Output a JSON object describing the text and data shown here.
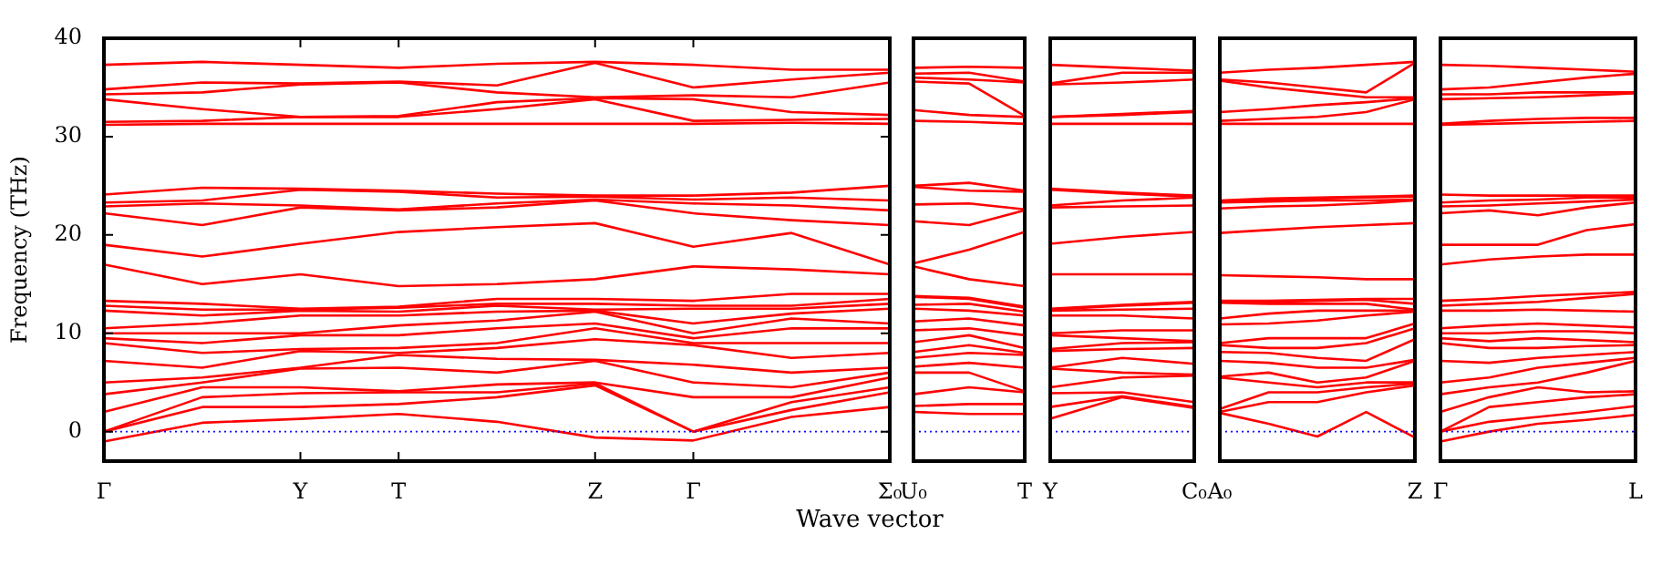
{
  "chart_data": [
    {
      "type": "line",
      "ylabel": "Frequency (THz)",
      "xlabel": "Wave vector",
      "color": "#ff0000",
      "categories": [
        "Γ",
        null,
        "Y",
        "T",
        null,
        "Z",
        "Γ",
        null,
        "Σ₀"
      ],
      "ylim": [
        -3,
        40
      ],
      "yticks": [
        0,
        10,
        20,
        30,
        40
      ],
      "ref_lines": [
        {
          "axis": "y",
          "value": 0,
          "color": "#0000ff",
          "line_style": "dotted"
        }
      ],
      "series": [
        {
          "values": [
            -1.0,
            0.9,
            1.3,
            1.8,
            1.0,
            -0.6,
            -0.9,
            1.5,
            2.5
          ]
        },
        {
          "values": [
            0,
            2.5,
            2.5,
            2.8,
            3.5,
            4.7,
            0,
            2.2,
            4.0
          ]
        },
        {
          "values": [
            0,
            3.5,
            3.9,
            4.0,
            4.0,
            4.9,
            0,
            3.0,
            4.5
          ]
        },
        {
          "values": [
            2,
            4.5,
            4.5,
            4.1,
            4.8,
            5.0,
            3.5,
            3.5,
            5.5
          ]
        },
        {
          "values": [
            3.8,
            5,
            6.4,
            6.5,
            6.0,
            7.2,
            5,
            4.5,
            6.0
          ]
        },
        {
          "values": [
            5,
            5.5,
            6.5,
            7.8,
            7.4,
            7.3,
            6.8,
            6.0,
            6.5
          ]
        },
        {
          "values": [
            7.2,
            6.5,
            8.2,
            8.0,
            8.5,
            9.4,
            8.8,
            7.5,
            8.0
          ]
        },
        {
          "values": [
            9,
            8,
            8.4,
            8.5,
            9.0,
            10.5,
            9.0,
            9.0,
            9.0
          ]
        },
        {
          "values": [
            9.5,
            9,
            9.8,
            9.8,
            10.5,
            11.0,
            9.5,
            10.5,
            10.5
          ]
        },
        {
          "values": [
            10,
            10,
            10,
            10.8,
            11.3,
            12.2,
            10.0,
            11.5,
            11.0
          ]
        },
        {
          "values": [
            10.5,
            11,
            11.8,
            11.8,
            12.2,
            12.3,
            11.0,
            12.0,
            12.5
          ]
        },
        {
          "values": [
            12.3,
            11.8,
            12.3,
            12.2,
            12.8,
            12.4,
            12.5,
            12.5,
            13.0
          ]
        },
        {
          "values": [
            12.8,
            12.4,
            12.4,
            12.6,
            13.0,
            13.0,
            12.8,
            12.8,
            13.5
          ]
        },
        {
          "values": [
            13.3,
            13,
            12.5,
            12.7,
            13.5,
            13.5,
            13.3,
            14.0,
            14.0
          ]
        },
        {
          "values": [
            17,
            15,
            16,
            14.8,
            15.0,
            15.5,
            16.8,
            16.5,
            16.0
          ]
        },
        {
          "values": [
            19,
            17.8,
            19.1,
            20.3,
            20.8,
            21.2,
            18.8,
            20.2,
            17.0
          ]
        },
        {
          "values": [
            22.2,
            21,
            22.8,
            22.5,
            22.8,
            23.5,
            22.2,
            21.5,
            21.0
          ]
        },
        {
          "values": [
            22.9,
            23.2,
            23.0,
            22.6,
            23.2,
            23.6,
            23.2,
            23.0,
            22.5
          ]
        },
        {
          "values": [
            23.3,
            23.5,
            24.6,
            24.4,
            23.8,
            23.9,
            23.6,
            23.8,
            23.5
          ]
        },
        {
          "values": [
            24.1,
            24.8,
            24.7,
            24.5,
            24.2,
            24.0,
            24.0,
            24.3,
            25.0
          ]
        },
        {
          "values": [
            31.2,
            31.3,
            31.3,
            31.3,
            31.3,
            31.3,
            31.3,
            31.4,
            31.3
          ]
        },
        {
          "values": [
            31.5,
            31.6,
            32.0,
            32.0,
            32.8,
            33.8,
            31.6,
            31.7,
            31.8
          ]
        },
        {
          "values": [
            33.8,
            32.8,
            32.0,
            32.1,
            33.5,
            33.9,
            33.8,
            32.5,
            32.2
          ]
        },
        {
          "values": [
            34.3,
            34.5,
            35.3,
            35.5,
            34.5,
            34.0,
            34.2,
            34.0,
            35.5
          ]
        },
        {
          "values": [
            34.8,
            35.5,
            35.4,
            35.6,
            35.2,
            37.5,
            35.0,
            35.8,
            36.5
          ]
        },
        {
          "values": [
            37.3,
            37.6,
            37.3,
            37.0,
            37.4,
            37.6,
            37.3,
            36.8,
            36.8
          ]
        }
      ]
    },
    {
      "type": "line",
      "color": "#ff0000",
      "tick_labels": "x",
      "categories": [
        "U₀",
        null,
        "T"
      ],
      "ylim": [
        -3,
        40
      ],
      "yticks": [
        0,
        10,
        20,
        30,
        40
      ],
      "ref_lines": [
        {
          "axis": "y",
          "value": 0,
          "color": "#0000ff",
          "line_style": "dotted"
        }
      ],
      "series": [
        {
          "values": [
            2.0,
            1.8,
            1.8
          ]
        },
        {
          "values": [
            2.6,
            2.8,
            2.8
          ]
        },
        {
          "values": [
            3.8,
            4.5,
            4.0
          ]
        },
        {
          "values": [
            6.0,
            6.0,
            4.1
          ]
        },
        {
          "values": [
            6.6,
            7.0,
            6.5
          ]
        },
        {
          "values": [
            7.5,
            8.0,
            7.8
          ]
        },
        {
          "values": [
            8.1,
            8.8,
            8.0
          ]
        },
        {
          "values": [
            9.1,
            9.8,
            8.5
          ]
        },
        {
          "values": [
            10.3,
            10.5,
            9.8
          ]
        },
        {
          "values": [
            11.2,
            11.5,
            10.8
          ]
        },
        {
          "values": [
            12.5,
            12.3,
            11.8
          ]
        },
        {
          "values": [
            12.9,
            13.0,
            12.2
          ]
        },
        {
          "values": [
            13.7,
            13.5,
            12.6
          ]
        },
        {
          "values": [
            13.8,
            13.6,
            12.7
          ]
        },
        {
          "values": [
            16.8,
            15.5,
            14.8
          ]
        },
        {
          "values": [
            17.1,
            18.5,
            20.3
          ]
        },
        {
          "values": [
            21.4,
            21.0,
            22.5
          ]
        },
        {
          "values": [
            23.1,
            23.2,
            22.6
          ]
        },
        {
          "values": [
            24.9,
            24.5,
            24.4
          ]
        },
        {
          "values": [
            25.0,
            25.3,
            24.5
          ]
        },
        {
          "values": [
            31.6,
            31.5,
            31.3
          ]
        },
        {
          "values": [
            32.7,
            32.2,
            32.0
          ]
        },
        {
          "values": [
            35.6,
            35.4,
            32.1
          ]
        },
        {
          "values": [
            36.0,
            35.8,
            35.5
          ]
        },
        {
          "values": [
            36.4,
            36.5,
            35.6
          ]
        },
        {
          "values": [
            37.0,
            37.1,
            37.0
          ]
        }
      ]
    },
    {
      "type": "line",
      "color": "#ff0000",
      "tick_labels": "x",
      "categories": [
        "Y",
        null,
        "C₀"
      ],
      "ylim": [
        -3,
        40
      ],
      "yticks": [
        0,
        10,
        20,
        30,
        40
      ],
      "ref_lines": [
        {
          "axis": "y",
          "value": 0,
          "color": "#0000ff",
          "line_style": "dotted"
        }
      ],
      "series": [
        {
          "values": [
            1.3,
            3.5,
            2.4
          ]
        },
        {
          "values": [
            2.5,
            3.6,
            2.5
          ]
        },
        {
          "values": [
            3.9,
            4.0,
            3.0
          ]
        },
        {
          "values": [
            4.5,
            5.5,
            5.7
          ]
        },
        {
          "values": [
            6.4,
            6.0,
            5.8
          ]
        },
        {
          "values": [
            6.5,
            7.5,
            6.9
          ]
        },
        {
          "values": [
            8.2,
            8.4,
            8.5
          ]
        },
        {
          "values": [
            8.4,
            9.0,
            9.1
          ]
        },
        {
          "values": [
            9.8,
            9.5,
            9.2
          ]
        },
        {
          "values": [
            10,
            10.3,
            10.3
          ]
        },
        {
          "values": [
            11.8,
            11.8,
            11.5
          ]
        },
        {
          "values": [
            12.3,
            12.4,
            12.5
          ]
        },
        {
          "values": [
            12.4,
            12.8,
            13.1
          ]
        },
        {
          "values": [
            12.5,
            12.9,
            13.2
          ]
        },
        {
          "values": [
            16,
            16.0,
            16.0
          ]
        },
        {
          "values": [
            19.1,
            19.8,
            20.3
          ]
        },
        {
          "values": [
            22.8,
            22.9,
            23.0
          ]
        },
        {
          "values": [
            23.0,
            23.5,
            23.8
          ]
        },
        {
          "values": [
            24.6,
            24.2,
            23.9
          ]
        },
        {
          "values": [
            24.7,
            24.3,
            24.0
          ]
        },
        {
          "values": [
            31.3,
            31.3,
            31.3
          ]
        },
        {
          "values": [
            32.0,
            32.2,
            32.5
          ]
        },
        {
          "values": [
            32.0,
            32.3,
            32.6
          ]
        },
        {
          "values": [
            35.3,
            35.5,
            35.8
          ]
        },
        {
          "values": [
            35.4,
            36.5,
            36.5
          ]
        },
        {
          "values": [
            37.3,
            37.0,
            36.7
          ]
        }
      ]
    },
    {
      "type": "line",
      "color": "#ff0000",
      "tick_labels": "x",
      "categories": [
        "A₀",
        null,
        null,
        null,
        "Z"
      ],
      "ylim": [
        -3,
        40
      ],
      "yticks": [
        0,
        10,
        20,
        30,
        40
      ],
      "ref_lines": [
        {
          "axis": "y",
          "value": 0,
          "color": "#0000ff",
          "line_style": "dotted"
        }
      ],
      "series": [
        {
          "values": [
            1.9,
            0.8,
            -0.5,
            2.0,
            -0.6
          ]
        },
        {
          "values": [
            2.0,
            3.0,
            3.0,
            4.0,
            4.7
          ]
        },
        {
          "values": [
            2.3,
            4.0,
            4.0,
            4.5,
            4.9
          ]
        },
        {
          "values": [
            5.5,
            5.0,
            4.5,
            5.0,
            5.0
          ]
        },
        {
          "values": [
            5.6,
            6.0,
            5.0,
            5.5,
            7.2
          ]
        },
        {
          "values": [
            7.2,
            7.0,
            6.5,
            6.5,
            7.3
          ]
        },
        {
          "values": [
            8.1,
            8.0,
            7.5,
            7.2,
            9.4
          ]
        },
        {
          "values": [
            8.8,
            8.5,
            8.5,
            9.0,
            10.5
          ]
        },
        {
          "values": [
            9.0,
            9.5,
            9.5,
            9.5,
            11.0
          ]
        },
        {
          "values": [
            10.9,
            11.0,
            11.3,
            11.8,
            12.2
          ]
        },
        {
          "values": [
            11.5,
            12.0,
            12.3,
            12.3,
            12.3
          ]
        },
        {
          "values": [
            13.1,
            13.0,
            13.0,
            13.0,
            12.4
          ]
        },
        {
          "values": [
            13.2,
            13.2,
            13.3,
            13.4,
            13.0
          ]
        },
        {
          "values": [
            13.3,
            13.3,
            13.4,
            13.5,
            13.5
          ]
        },
        {
          "values": [
            15.9,
            15.8,
            15.7,
            15.5,
            15.5
          ]
        },
        {
          "values": [
            20.2,
            20.5,
            20.8,
            21.0,
            21.2
          ]
        },
        {
          "values": [
            22.7,
            22.9,
            23.0,
            23.2,
            23.5
          ]
        },
        {
          "values": [
            23.3,
            23.4,
            23.5,
            23.5,
            23.6
          ]
        },
        {
          "values": [
            23.4,
            23.6,
            23.7,
            23.8,
            23.9
          ]
        },
        {
          "values": [
            23.5,
            23.7,
            23.8,
            23.9,
            24.0
          ]
        },
        {
          "values": [
            31.3,
            31.3,
            31.3,
            31.3,
            31.3
          ]
        },
        {
          "values": [
            31.6,
            31.8,
            32.0,
            32.5,
            33.8
          ]
        },
        {
          "values": [
            32.5,
            32.8,
            33.2,
            33.5,
            33.9
          ]
        },
        {
          "values": [
            35.7,
            35.0,
            34.5,
            34.0,
            34.0
          ]
        },
        {
          "values": [
            35.8,
            35.5,
            35.0,
            34.5,
            37.5
          ]
        },
        {
          "values": [
            36.5,
            36.8,
            37.0,
            37.3,
            37.6
          ]
        }
      ]
    },
    {
      "type": "line",
      "color": "#ff0000",
      "tick_labels": "x",
      "categories": [
        "Γ",
        null,
        null,
        null,
        "L"
      ],
      "ylim": [
        -3,
        40
      ],
      "yticks": [
        0,
        10,
        20,
        30,
        40
      ],
      "ref_lines": [
        {
          "axis": "y",
          "value": 0,
          "color": "#0000ff",
          "line_style": "dotted"
        }
      ],
      "series": [
        {
          "values": [
            -1.0,
            0.0,
            0.8,
            1.2,
            1.7
          ]
        },
        {
          "values": [
            0,
            1.0,
            1.5,
            2.0,
            2.6
          ]
        },
        {
          "values": [
            0,
            2.5,
            3.0,
            3.5,
            3.8
          ]
        },
        {
          "values": [
            2,
            3.5,
            4.5,
            4.0,
            4.1
          ]
        },
        {
          "values": [
            3.8,
            4.5,
            5.0,
            6.0,
            7.2
          ]
        },
        {
          "values": [
            5,
            5.5,
            6.5,
            7.0,
            7.5
          ]
        },
        {
          "values": [
            7.2,
            7.0,
            7.5,
            7.8,
            8.1
          ]
        },
        {
          "values": [
            9,
            8.5,
            8.5,
            8.7,
            8.8
          ]
        },
        {
          "values": [
            9.5,
            9.2,
            9.5,
            9.3,
            9.1
          ]
        },
        {
          "values": [
            10,
            10.0,
            10.2,
            10.2,
            10.0
          ]
        },
        {
          "values": [
            10.5,
            10.8,
            11.0,
            10.8,
            10.6
          ]
        },
        {
          "values": [
            12.3,
            12.3,
            12.4,
            12.3,
            12.2
          ]
        },
        {
          "values": [
            12.8,
            13.0,
            13.2,
            13.6,
            14.0
          ]
        },
        {
          "values": [
            13.3,
            13.5,
            13.8,
            14.0,
            14.2
          ]
        },
        {
          "values": [
            17,
            17.5,
            17.8,
            18.0,
            18.0
          ]
        },
        {
          "values": [
            19,
            19.0,
            19.0,
            20.5,
            21.1
          ]
        },
        {
          "values": [
            22.2,
            22.5,
            22.0,
            22.8,
            23.3
          ]
        },
        {
          "values": [
            22.9,
            23.0,
            23.2,
            23.4,
            23.6
          ]
        },
        {
          "values": [
            23.3,
            23.5,
            23.6,
            23.8,
            23.8
          ]
        },
        {
          "values": [
            24.1,
            24.0,
            24.0,
            24.0,
            24.0
          ]
        },
        {
          "values": [
            31.2,
            31.3,
            31.4,
            31.5,
            31.6
          ]
        },
        {
          "values": [
            31.3,
            31.6,
            31.8,
            31.9,
            31.9
          ]
        },
        {
          "values": [
            33.8,
            33.9,
            34.0,
            34.2,
            34.4
          ]
        },
        {
          "values": [
            34.3,
            34.3,
            34.5,
            34.5,
            34.5
          ]
        },
        {
          "values": [
            34.8,
            35.0,
            35.5,
            36.0,
            36.4
          ]
        },
        {
          "values": [
            37.3,
            37.2,
            37.0,
            36.8,
            36.6
          ]
        }
      ]
    }
  ]
}
